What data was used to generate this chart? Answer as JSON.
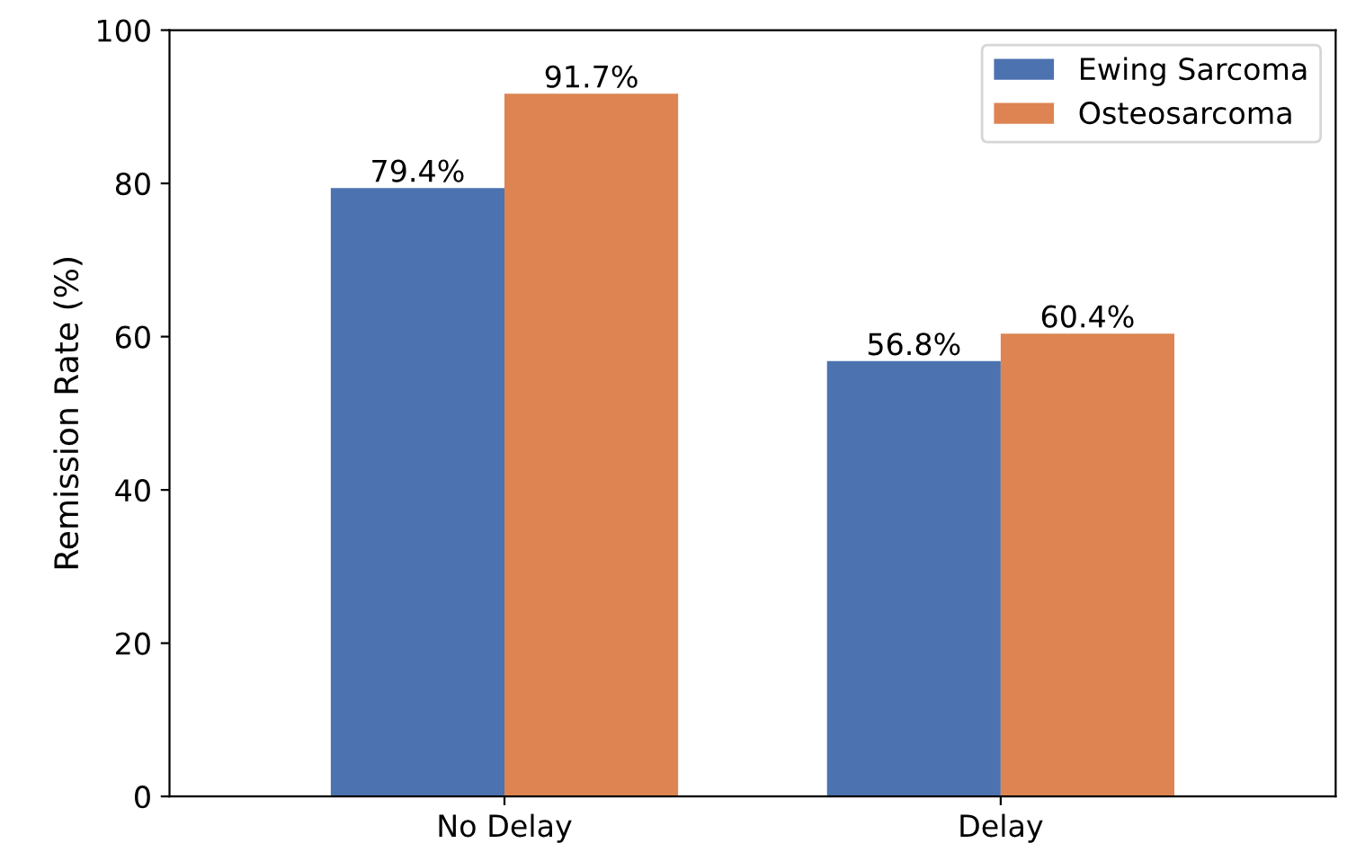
{
  "chart_data": {
    "type": "bar",
    "ylabel": "Remission Rate (%)",
    "categories": [
      "No Delay",
      "Delay"
    ],
    "series": [
      {
        "name": "Ewing Sarcoma",
        "color": "#4c72b0",
        "values": [
          79.4,
          56.8
        ],
        "value_labels": [
          "79.4%",
          "56.8%"
        ]
      },
      {
        "name": "Osteosarcoma",
        "color": "#dd8452",
        "values": [
          91.7,
          60.4
        ],
        "value_labels": [
          "91.7%",
          "60.4%"
        ]
      }
    ],
    "ylim": [
      0,
      100
    ],
    "yticks": [
      0,
      20,
      40,
      60,
      80,
      100
    ],
    "legend": "top right",
    "grid": false
  }
}
